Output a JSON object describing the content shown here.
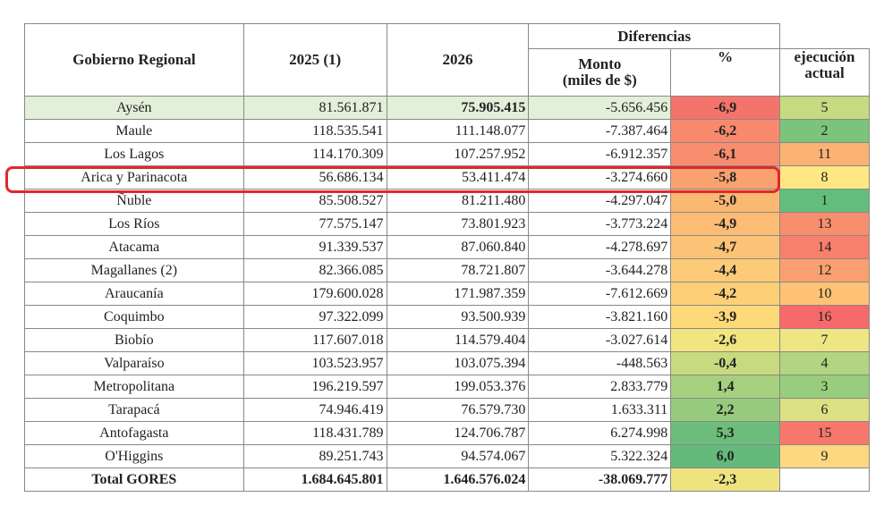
{
  "table": {
    "headers": {
      "region": "Gobierno Regional",
      "y2025": "2025 (1)",
      "y2026": "2026",
      "diferencias": "Diferencias",
      "monto": "Monto\n(miles de $)",
      "pct": "%",
      "ejecucion": "ejecución\nactual"
    },
    "rows": [
      [
        "Aysén",
        "81.561.871",
        "75.905.415",
        "-5.656.456",
        "-6,9",
        "5"
      ],
      [
        "Maule",
        "118.535.541",
        "111.148.077",
        "-7.387.464",
        "-6,2",
        "2"
      ],
      [
        "Los Lagos",
        "114.170.309",
        "107.257.952",
        "-6.912.357",
        "-6,1",
        "11"
      ],
      [
        "Arica y Parinacota",
        "56.686.134",
        "53.411.474",
        "-3.274.660",
        "-5,8",
        "8"
      ],
      [
        "Ñuble",
        "85.508.527",
        "81.211.480",
        "-4.297.047",
        "-5,0",
        "1"
      ],
      [
        "Los Ríos",
        "77.575.147",
        "73.801.923",
        "-3.773.224",
        "-4,9",
        "13"
      ],
      [
        "Atacama",
        "91.339.537",
        "87.060.840",
        "-4.278.697",
        "-4,7",
        "14"
      ],
      [
        "Magallanes (2)",
        "82.366.085",
        "78.721.807",
        "-3.644.278",
        "-4,4",
        "12"
      ],
      [
        "Araucanía",
        "179.600.028",
        "171.987.359",
        "-7.612.669",
        "-4,2",
        "10"
      ],
      [
        "Coquimbo",
        "97.322.099",
        "93.500.939",
        "-3.821.160",
        "-3,9",
        "16"
      ],
      [
        "Biobío",
        "117.607.018",
        "114.579.404",
        "-3.027.614",
        "-2,6",
        "7"
      ],
      [
        "Valparaíso",
        "103.523.957",
        "103.075.394",
        "-448.563",
        "-0,4",
        "4"
      ],
      [
        "Metropolitana",
        "196.219.597",
        "199.053.376",
        "2.833.779",
        "1,4",
        "3"
      ],
      [
        "Tarapacá",
        "74.946.419",
        "76.579.730",
        "1.633.311",
        "2,2",
        "6"
      ],
      [
        "Antofagasta",
        "118.431.789",
        "124.706.787",
        "6.274.998",
        "5,3",
        "15"
      ],
      [
        "O'Higgins",
        "89.251.743",
        "94.574.067",
        "5.322.324",
        "6,0",
        "9"
      ]
    ],
    "pct_colors": [
      "#f4746b",
      "#f78a6d",
      "#f88e6e",
      "#f9a26f",
      "#fbb873",
      "#fcbc74",
      "#fcc276",
      "#fdcb77",
      "#fdd078",
      "#fed97a",
      "#f2e47f",
      "#c8da80",
      "#a6d07e",
      "#96cb7d",
      "#6cbd7b",
      "#63ba7b"
    ],
    "ejecucion_colors": [
      "#c6da80",
      "#7cc37c",
      "#fcb273",
      "#ffe783",
      "#63be7b",
      "#f98e6f",
      "#f8806d",
      "#faa070",
      "#fdc275",
      "#f8696b",
      "#eee583",
      "#b1d580",
      "#98cd7e",
      "#dde082",
      "#f8776d",
      "#fed880"
    ],
    "highlight_row_color": "#e2efd9",
    "total": [
      "Total GORES",
      "1.684.645.801",
      "1.646.576.024",
      "-38.069.777",
      "-2,3"
    ],
    "total_pct_color": "#eee37f"
  }
}
